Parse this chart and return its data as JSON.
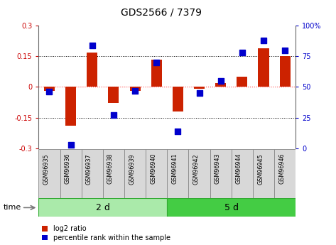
{
  "title": "GDS2566 / 7379",
  "samples": [
    "GSM96935",
    "GSM96936",
    "GSM96937",
    "GSM96938",
    "GSM96939",
    "GSM96940",
    "GSM96941",
    "GSM96942",
    "GSM96943",
    "GSM96944",
    "GSM96945",
    "GSM96946"
  ],
  "log2_ratio": [
    -0.02,
    -0.19,
    0.17,
    -0.08,
    -0.02,
    0.135,
    -0.12,
    -0.01,
    0.02,
    0.05,
    0.19,
    0.15
  ],
  "percentile_rank": [
    46,
    3,
    84,
    27,
    47,
    70,
    14,
    45,
    55,
    78,
    88,
    80
  ],
  "groups": [
    {
      "label": "2 d",
      "start": 0,
      "end": 6,
      "color": "#aaeaaa"
    },
    {
      "label": "5 d",
      "start": 6,
      "end": 12,
      "color": "#44cc44"
    }
  ],
  "ylim_left": [
    -0.3,
    0.3
  ],
  "ylim_right": [
    0,
    100
  ],
  "left_ticks": [
    -0.3,
    -0.15,
    0,
    0.15,
    0.3
  ],
  "right_ticks": [
    0,
    25,
    50,
    75,
    100
  ],
  "dotted_lines": [
    -0.15,
    0.15
  ],
  "zero_line_color": "#ff4444",
  "bar_color": "#cc2200",
  "dot_color": "#0000cc",
  "bar_width": 0.5,
  "dot_size": 28,
  "left_tick_color": "#cc0000",
  "right_tick_color": "#0000cc",
  "legend_labels": [
    "log2 ratio",
    "percentile rank within the sample"
  ],
  "time_label": "time",
  "background_color": "#ffffff",
  "label_box_color": "#d8d8d8",
  "label_box_border": "#888888"
}
